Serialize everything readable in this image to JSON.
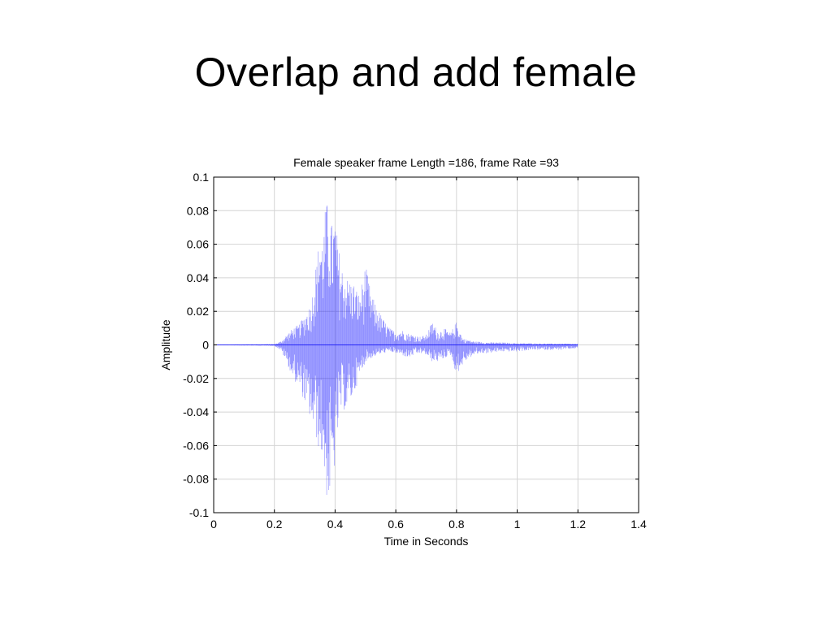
{
  "slide": {
    "title": "Overlap and add female"
  },
  "chart_data": {
    "type": "line",
    "title": "Female speaker frame Length =186, frame Rate =93",
    "xlabel": "Time in Seconds",
    "ylabel": "Amplitude",
    "xlim": [
      0,
      1.4
    ],
    "ylim": [
      -0.1,
      0.1
    ],
    "x_ticks": [
      0,
      0.2,
      0.4,
      0.6,
      0.8,
      1,
      1.2,
      1.4
    ],
    "x_tick_labels": [
      "0",
      "0.2",
      "0.4",
      "0.6",
      "0.8",
      "1",
      "1.2",
      "1.4"
    ],
    "y_ticks": [
      0.1,
      0.08,
      0.06,
      0.04,
      0.02,
      0,
      -0.02,
      -0.04,
      -0.06,
      -0.08,
      -0.1
    ],
    "y_tick_labels": [
      "0.1",
      "0.08",
      "0.06",
      "0.04",
      "0.02",
      "0",
      "-0.02",
      "-0.04",
      "-0.06",
      "-0.08",
      "-0.1"
    ],
    "grid": true,
    "line_color": "#0000ff",
    "series": [
      {
        "x": [
          0.0,
          0.2,
          0.22,
          0.24,
          0.26,
          0.28,
          0.3,
          0.32,
          0.34,
          0.35,
          0.36,
          0.37,
          0.38,
          0.39,
          0.4,
          0.41,
          0.42,
          0.44,
          0.46,
          0.48,
          0.5,
          0.52,
          0.54,
          0.56,
          0.58,
          0.6,
          0.62,
          0.64,
          0.66,
          0.68,
          0.7,
          0.72,
          0.74,
          0.76,
          0.78,
          0.8,
          0.82,
          0.84,
          0.86,
          0.88,
          0.9,
          0.95,
          1.0,
          1.05,
          1.1,
          1.15,
          1.2
        ],
        "y_max": [
          0.0002,
          0.0005,
          0.002,
          0.006,
          0.01,
          0.012,
          0.018,
          0.025,
          0.052,
          0.07,
          0.062,
          0.088,
          0.08,
          0.072,
          0.078,
          0.06,
          0.048,
          0.04,
          0.038,
          0.03,
          0.048,
          0.03,
          0.022,
          0.015,
          0.01,
          0.008,
          0.009,
          0.007,
          0.006,
          0.005,
          0.006,
          0.014,
          0.008,
          0.01,
          0.007,
          0.014,
          0.004,
          0.003,
          0.002,
          0.002,
          0.0015,
          0.0015,
          0.001,
          0.001,
          0.0008,
          0.0008,
          0.0006
        ],
        "y_min": [
          -0.0002,
          -0.0005,
          -0.003,
          -0.01,
          -0.02,
          -0.025,
          -0.035,
          -0.045,
          -0.058,
          -0.065,
          -0.068,
          -0.09,
          -0.095,
          -0.085,
          -0.072,
          -0.05,
          -0.04,
          -0.038,
          -0.03,
          -0.02,
          -0.01,
          -0.008,
          -0.006,
          -0.005,
          -0.004,
          -0.005,
          -0.006,
          -0.008,
          -0.006,
          -0.005,
          -0.006,
          -0.01,
          -0.01,
          -0.008,
          -0.006,
          -0.018,
          -0.012,
          -0.008,
          -0.006,
          -0.005,
          -0.005,
          -0.004,
          -0.004,
          -0.003,
          -0.003,
          -0.003,
          -0.002
        ]
      }
    ]
  }
}
